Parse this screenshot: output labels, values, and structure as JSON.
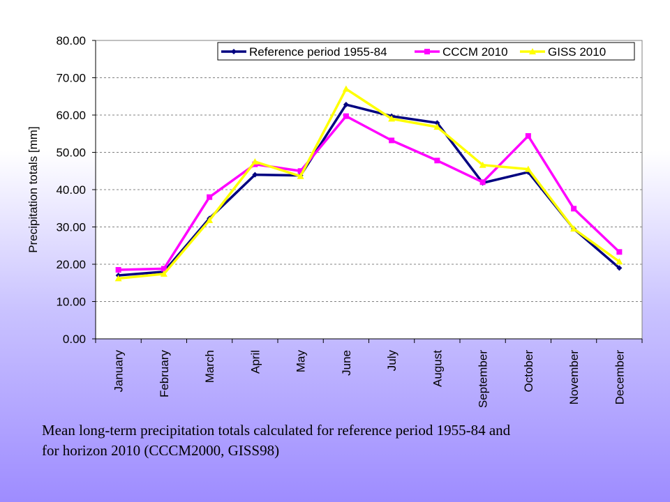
{
  "chart_data": {
    "type": "line",
    "title": "",
    "xlabel": "",
    "ylabel": "Precipitation totals [mm]",
    "ylim": [
      0,
      80
    ],
    "y_ticks": [
      "0.00",
      "10.00",
      "20.00",
      "30.00",
      "40.00",
      "50.00",
      "60.00",
      "70.00",
      "80.00"
    ],
    "grid": "horizontal dashed",
    "legend_position": "top",
    "categories": [
      "January",
      "February",
      "March",
      "April",
      "May",
      "June",
      "July",
      "August",
      "September",
      "October",
      "November",
      "December"
    ],
    "series": [
      {
        "name": "Reference period 1955-84",
        "color": "#000080",
        "marker": "diamond",
        "values": [
          17.0,
          18.0,
          32.3,
          44.0,
          43.8,
          62.8,
          59.7,
          57.9,
          41.8,
          44.7,
          29.5,
          19.0
        ]
      },
      {
        "name": "CCCM 2010",
        "color": "#ff00ff",
        "marker": "square",
        "values": [
          18.5,
          18.8,
          38.0,
          46.8,
          45.0,
          59.7,
          53.2,
          47.8,
          42.0,
          54.4,
          34.9,
          23.3
        ]
      },
      {
        "name": "GISS 2010",
        "color": "#ffff00",
        "marker": "triangle",
        "values": [
          16.2,
          17.4,
          31.8,
          47.5,
          43.6,
          67.0,
          59.0,
          56.8,
          46.6,
          45.5,
          29.5,
          20.7
        ]
      }
    ]
  },
  "caption": {
    "line1": "Mean long-term precipitation totals calculated for reference period 1955-84 and",
    "line2": "for horizon 2010 (CCCM2000, GISS98)"
  }
}
